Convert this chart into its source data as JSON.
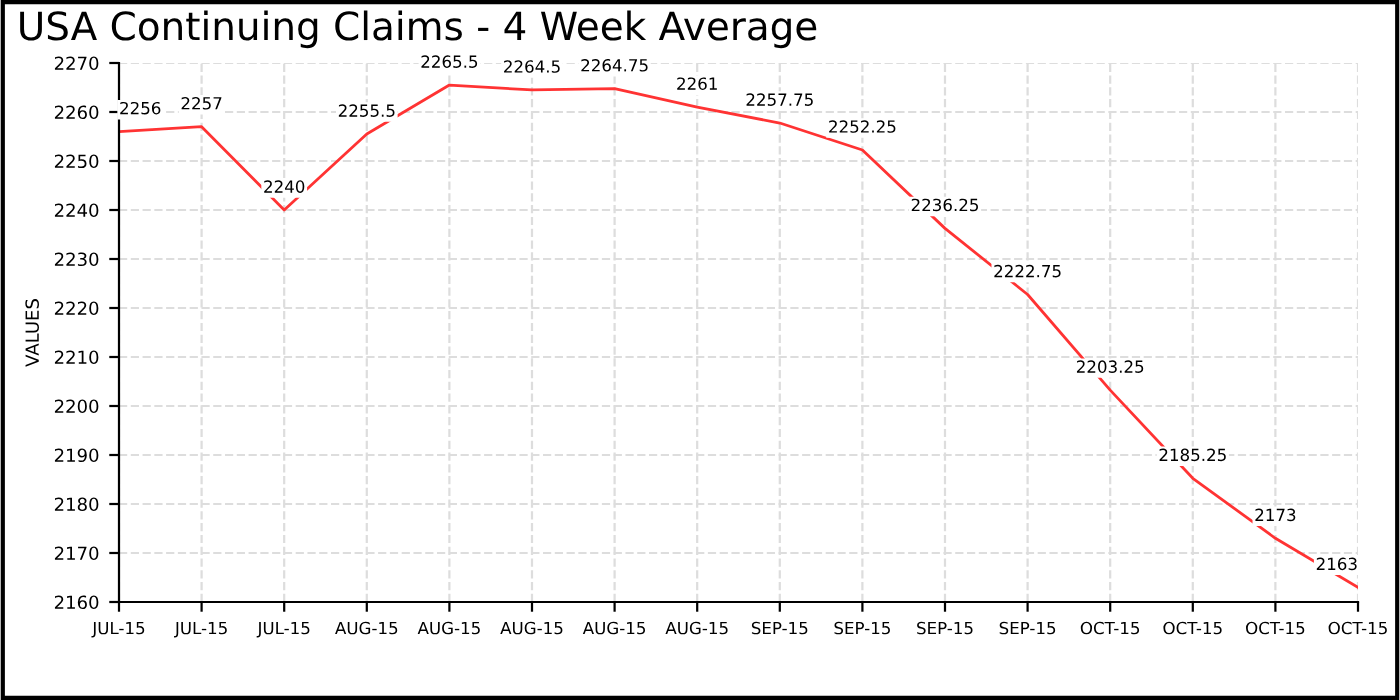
{
  "chart_data": {
    "type": "line",
    "title": "USA Continuing Claims - 4 Week Average",
    "ylabel": "VALUES",
    "categories": [
      "JUL-15",
      "JUL-15",
      "JUL-15",
      "AUG-15",
      "AUG-15",
      "AUG-15",
      "AUG-15",
      "AUG-15",
      "SEP-15",
      "SEP-15",
      "SEP-15",
      "SEP-15",
      "OCT-15",
      "OCT-15",
      "OCT-15",
      "OCT-15"
    ],
    "series": [
      {
        "color": "#ff3333",
        "values": [
          2256,
          2257,
          2240,
          2255.5,
          2265.5,
          2264.5,
          2264.75,
          2261,
          2257.75,
          2252.25,
          2236.25,
          2222.75,
          2203.25,
          2185.25,
          2173,
          2163
        ]
      }
    ],
    "ylim": [
      2160,
      2270
    ],
    "yticks": [
      2160,
      2170,
      2180,
      2190,
      2200,
      2210,
      2220,
      2230,
      2240,
      2250,
      2260,
      2270
    ],
    "grid": true,
    "data_labels": true,
    "marker": "none",
    "line_style": "solid"
  }
}
